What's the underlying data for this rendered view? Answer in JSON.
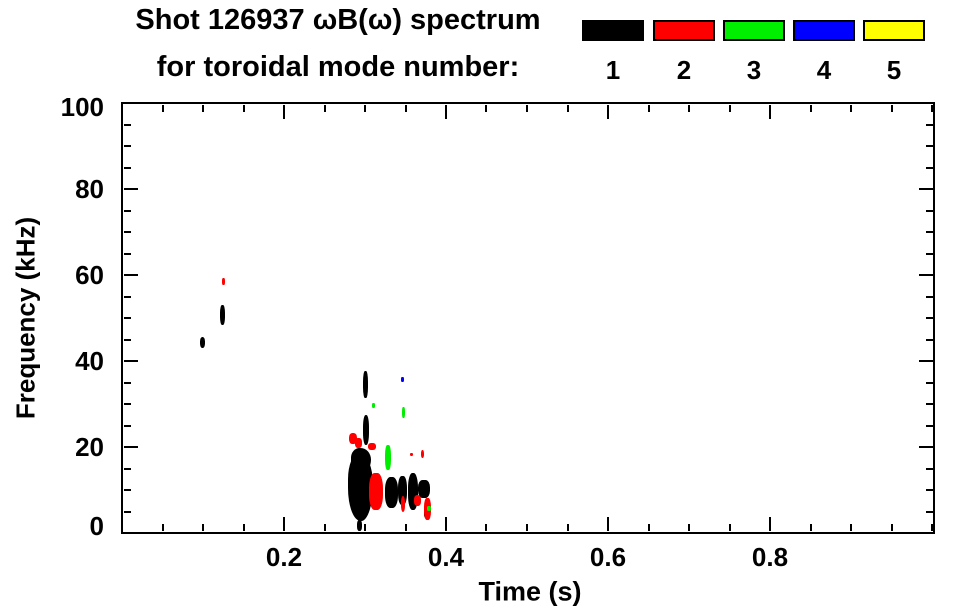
{
  "figure": {
    "title_line1": "Shot 126937 ωB(ω) spectrum",
    "title_line2": "for toroidal mode number:",
    "background_color": "#FFFFFF",
    "axis_color": "#000000"
  },
  "legend": {
    "entries": [
      {
        "label": "1",
        "color": "#000000"
      },
      {
        "label": "2",
        "color": "#FF0000"
      },
      {
        "label": "3",
        "color": "#00EE00"
      },
      {
        "label": "4",
        "color": "#0000FF"
      },
      {
        "label": "5",
        "color": "#FFFF00"
      }
    ]
  },
  "chart_data": {
    "type": "scatter",
    "title": "Shot 126937 ωB(ω) spectrum for toroidal mode number: 1 2 3 4 5",
    "xlabel": "Time (s)",
    "ylabel": "Frequency (kHz)",
    "xlim": [
      0,
      1.004
    ],
    "ylim": [
      0,
      100
    ],
    "grid": false,
    "legend_position": "top-right",
    "x_major_ticks": [
      0.2,
      0.4,
      0.6,
      0.8
    ],
    "x_tick_labels": [
      "0.2",
      "0.4",
      "0.6",
      "0.8"
    ],
    "x_minor_step": 0.05,
    "y_major_ticks": [
      0,
      20,
      40,
      60,
      80,
      100
    ],
    "y_tick_labels": [
      "0",
      "20",
      "40",
      "60",
      "80",
      "100"
    ],
    "y_minor_step": 5,
    "series": [
      {
        "name": "toroidal mode n=1",
        "mode": 1,
        "color": "#000000",
        "marks": [
          {
            "t": [
              0.096,
              0.103
            ],
            "f": [
              43.0,
              45.6
            ]
          },
          {
            "t": [
              0.121,
              0.127
            ],
            "f": [
              48.4,
              53.0
            ]
          },
          {
            "t": [
              0.298,
              0.304
            ],
            "f": [
              31.4,
              37.7
            ]
          },
          {
            "t": [
              0.297,
              0.305
            ],
            "f": [
              20.5,
              27.4
            ]
          },
          {
            "t": [
              0.283,
              0.307
            ],
            "f": [
              14.0,
              19.8
            ]
          },
          {
            "t": [
              0.279,
              0.31
            ],
            "f": [
              2.8,
              18.6
            ]
          },
          {
            "t": [
              0.29,
              0.296
            ],
            "f": [
              0.5,
              3.0
            ]
          },
          {
            "t": [
              0.325,
              0.341
            ],
            "f": [
              5.8,
              13.0
            ]
          },
          {
            "t": [
              0.341,
              0.352
            ],
            "f": [
              6.5,
              13.3
            ]
          },
          {
            "t": [
              0.353,
              0.366
            ],
            "f": [
              5.3,
              13.9
            ]
          },
          {
            "t": [
              0.366,
              0.38
            ],
            "f": [
              8.1,
              12.3
            ]
          },
          {
            "t": [
              0.373,
              0.379
            ],
            "f": [
              3.5,
              5.3
            ]
          }
        ]
      },
      {
        "name": "toroidal mode n=2",
        "mode": 2,
        "color": "#FF0000",
        "marks": [
          {
            "t": [
              0.124,
              0.127
            ],
            "f": [
              57.7,
              59.3
            ]
          },
          {
            "t": [
              0.28,
              0.29
            ],
            "f": [
              20.7,
              23.3
            ]
          },
          {
            "t": [
              0.288,
              0.296
            ],
            "f": [
              19.8,
              22.0
            ]
          },
          {
            "t": [
              0.304,
              0.313
            ],
            "f": [
              19.3,
              21.0
            ]
          },
          {
            "t": [
              0.305,
              0.322
            ],
            "f": [
              5.3,
              14.0
            ]
          },
          {
            "t": [
              0.344,
              0.35
            ],
            "f": [
              4.9,
              8.6
            ]
          },
          {
            "t": [
              0.356,
              0.359
            ],
            "f": [
              17.9,
              18.6
            ]
          },
          {
            "t": [
              0.369,
              0.373
            ],
            "f": [
              17.4,
              19.3
            ]
          },
          {
            "t": [
              0.36,
              0.369
            ],
            "f": [
              6.3,
              8.8
            ]
          },
          {
            "t": [
              0.373,
              0.381
            ],
            "f": [
              3.0,
              8.1
            ]
          }
        ]
      },
      {
        "name": "toroidal mode n=3",
        "mode": 3,
        "color": "#00EE00",
        "marks": [
          {
            "t": [
              0.309,
              0.312
            ],
            "f": [
              29.1,
              30.3
            ]
          },
          {
            "t": [
              0.346,
              0.349
            ],
            "f": [
              26.7,
              29.3
            ]
          },
          {
            "t": [
              0.325,
              0.332
            ],
            "f": [
              14.7,
              20.5
            ]
          },
          {
            "t": [
              0.377,
              0.381
            ],
            "f": [
              5.1,
              6.3
            ]
          }
        ]
      },
      {
        "name": "toroidal mode n=4",
        "mode": 4,
        "color": "#0000FF",
        "marks": [
          {
            "t": [
              0.345,
              0.348
            ],
            "f": [
              35.1,
              36.3
            ]
          }
        ]
      },
      {
        "name": "toroidal mode n=5",
        "mode": 5,
        "color": "#FFFF00",
        "marks": []
      }
    ]
  }
}
